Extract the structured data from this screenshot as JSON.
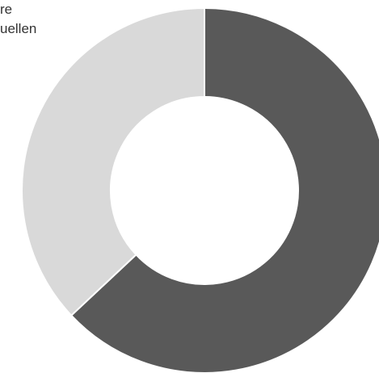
{
  "chart_data": {
    "type": "pie",
    "style": "donut",
    "annotation_lines": [
      "re",
      "uellen"
    ],
    "slices": [
      {
        "value": 63,
        "color": "#595959"
      },
      {
        "value": 37,
        "color": "#d9d9d9"
      }
    ],
    "start_angle_deg": 0,
    "direction": "clockwise",
    "separator_color": "#ffffff",
    "grid": false,
    "legend": "none"
  }
}
